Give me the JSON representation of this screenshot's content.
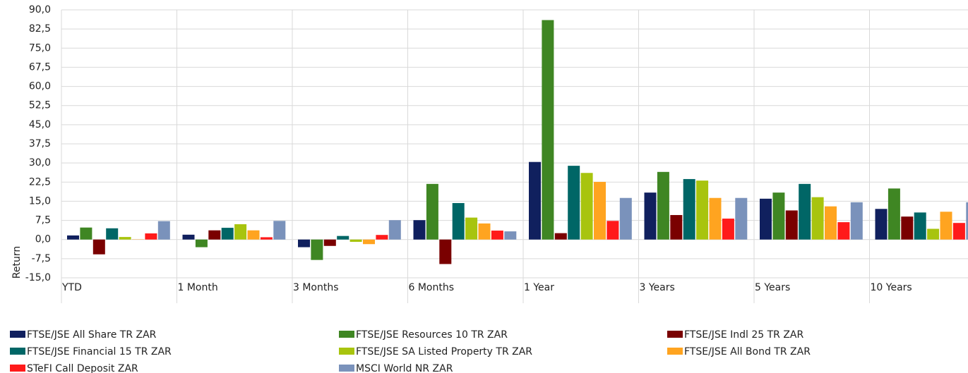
{
  "chart_data": {
    "type": "bar",
    "y_label": "Return",
    "categories": [
      "YTD",
      "1 Month",
      "3 Months",
      "6 Months",
      "1 Year",
      "3 Years",
      "5 Years",
      "10 Years"
    ],
    "series": [
      {
        "name": "FTSE/JSE All Share TR ZAR",
        "color": "#10205e",
        "values": [
          1.6,
          1.9,
          -3.0,
          7.6,
          30.4,
          18.4,
          16.0,
          12.0
        ]
      },
      {
        "name": "FTSE/JSE Resources 10 TR ZAR",
        "color": "#3f8623",
        "values": [
          4.7,
          -3.0,
          -8.0,
          21.8,
          86.0,
          26.5,
          18.4,
          20.0
        ]
      },
      {
        "name": "FTSE/JSE Indl 25 TR ZAR",
        "color": "#7a0000",
        "values": [
          -5.8,
          3.6,
          -2.5,
          -9.6,
          2.5,
          9.6,
          11.4,
          9.0
        ]
      },
      {
        "name": "FTSE/JSE Financial 15 TR ZAR",
        "color": "#006666",
        "values": [
          4.4,
          4.6,
          1.4,
          14.3,
          28.9,
          23.7,
          21.8,
          10.6
        ]
      },
      {
        "name": "FTSE/JSE SA Listed Property TR ZAR",
        "color": "#a8c40e",
        "values": [
          1.0,
          6.0,
          -0.9,
          8.6,
          26.1,
          23.1,
          16.6,
          4.2
        ]
      },
      {
        "name": "FTSE/JSE All Bond TR ZAR",
        "color": "#ffa420",
        "values": [
          0.1,
          3.6,
          -1.8,
          6.3,
          22.6,
          16.3,
          13.0,
          10.9
        ]
      },
      {
        "name": "STeFI Call Deposit ZAR",
        "color": "#ff1a1a",
        "values": [
          2.4,
          0.9,
          1.8,
          3.5,
          7.3,
          8.2,
          6.8,
          6.5
        ]
      },
      {
        "name": "MSCI World NR ZAR",
        "color": "#7a92bb",
        "values": [
          7.2,
          7.3,
          7.6,
          3.2,
          16.3,
          16.3,
          14.6,
          14.6
        ]
      }
    ],
    "ylim": [
      -15,
      90
    ],
    "yticks": [
      {
        "value": -15,
        "label": "-15,0"
      },
      {
        "value": -7.5,
        "label": "-7,5"
      },
      {
        "value": 0,
        "label": "0,0"
      },
      {
        "value": 7.5,
        "label": "7,5"
      },
      {
        "value": 15,
        "label": "15,0"
      },
      {
        "value": 22.5,
        "label": "22,5"
      },
      {
        "value": 30,
        "label": "30,0"
      },
      {
        "value": 37.5,
        "label": "37,5"
      },
      {
        "value": 45,
        "label": "45,0"
      },
      {
        "value": 52.5,
        "label": "52,5"
      },
      {
        "value": 60,
        "label": "60,0"
      },
      {
        "value": 67.5,
        "label": "67,5"
      },
      {
        "value": 75,
        "label": "75,0"
      },
      {
        "value": 82.5,
        "label": "82,5"
      },
      {
        "value": 90,
        "label": "90,0"
      }
    ],
    "grid": true
  }
}
